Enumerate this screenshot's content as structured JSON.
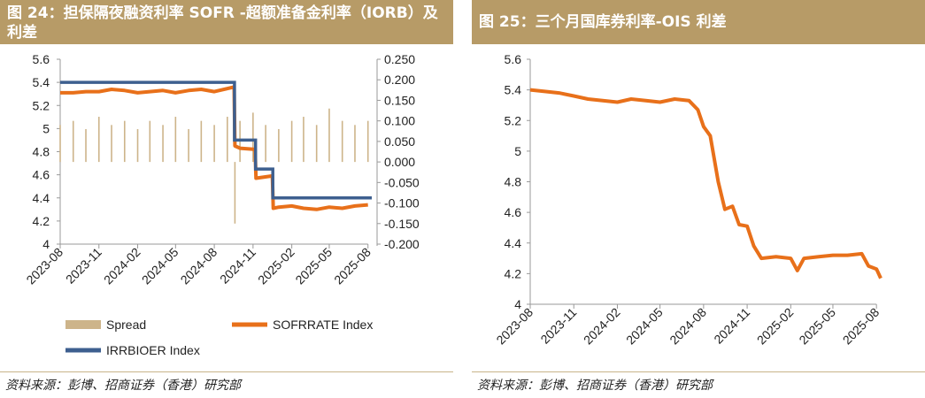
{
  "left_panel": {
    "title": "图 24：担保隔夜融资利率 SOFR -超额准备金利率（IORB）及利差",
    "source": "资料来源：彭博、招商证券（香港）研究部"
  },
  "right_panel": {
    "title": "图 25：三个月国库券利率-OIS 利差",
    "source": "资料来源：彭博、招商证券（香港）研究部"
  },
  "colors": {
    "header_bg": "#b79b67",
    "sofr": "#e8701a",
    "iorb": "#3d5f8f",
    "spread": "#cdb48a",
    "line_right": "#e8701a"
  },
  "chart_data": [
    {
      "type": "line",
      "x_ticks": [
        "2023-08",
        "2023-11",
        "2024-02",
        "2024-05",
        "2024-08",
        "2024-11",
        "2025-02",
        "2025-05",
        "2025-08"
      ],
      "y_left_ticks": [
        "5.6",
        "5.4",
        "5.2",
        "5",
        "4.8",
        "4.6",
        "4.4",
        "4.2",
        "4"
      ],
      "y_right_ticks": [
        "0.250",
        "0.200",
        "0.150",
        "0.100",
        "0.050",
        "0.000",
        "-0.050",
        "-0.100",
        "-0.150",
        "-0.200"
      ],
      "ylim_left": [
        4,
        5.6
      ],
      "ylim_right": [
        -0.2,
        0.25
      ],
      "grid": false,
      "legend_position": "bottom",
      "series": [
        {
          "name": "Spread",
          "axis": "right",
          "style": "bars",
          "x": [
            "2023-08-01",
            "2023-09-01",
            "2023-10-01",
            "2023-11-01",
            "2023-12-01",
            "2024-01-01",
            "2024-02-01",
            "2024-03-01",
            "2024-04-01",
            "2024-05-01",
            "2024-06-01",
            "2024-07-01",
            "2024-08-01",
            "2024-09-01",
            "2024-09-19",
            "2024-10-01",
            "2024-11-01",
            "2024-12-01",
            "2025-01-01",
            "2025-02-01",
            "2025-03-01",
            "2025-04-01",
            "2025-05-01",
            "2025-06-01",
            "2025-07-01",
            "2025-08-01"
          ],
          "values": [
            0.09,
            0.1,
            0.08,
            0.11,
            0.09,
            0.1,
            0.08,
            0.1,
            0.09,
            0.11,
            0.08,
            0.1,
            0.09,
            0.11,
            -0.15,
            0.1,
            0.12,
            0.09,
            0.08,
            0.1,
            0.11,
            0.09,
            0.13,
            0.1,
            0.09,
            0.1
          ]
        },
        {
          "name": "SOFRRATE Index",
          "axis": "left",
          "style": "line",
          "x": [
            "2023-08-01",
            "2023-09-01",
            "2023-10-01",
            "2023-11-01",
            "2023-12-01",
            "2024-01-01",
            "2024-02-01",
            "2024-03-01",
            "2024-04-01",
            "2024-05-01",
            "2024-06-01",
            "2024-07-01",
            "2024-08-01",
            "2024-09-17",
            "2024-09-19",
            "2024-10-01",
            "2024-11-06",
            "2024-11-08",
            "2024-12-17",
            "2024-12-19",
            "2025-01-01",
            "2025-02-01",
            "2025-03-01",
            "2025-04-01",
            "2025-05-01",
            "2025-06-01",
            "2025-07-01",
            "2025-08-01"
          ],
          "values": [
            5.31,
            5.31,
            5.32,
            5.32,
            5.34,
            5.33,
            5.31,
            5.32,
            5.33,
            5.31,
            5.33,
            5.34,
            5.32,
            5.36,
            4.85,
            4.83,
            4.82,
            4.57,
            4.59,
            4.31,
            4.32,
            4.33,
            4.31,
            4.3,
            4.32,
            4.31,
            4.33,
            4.34
          ]
        },
        {
          "name": "IRRBIOER Index",
          "axis": "left",
          "style": "step",
          "x": [
            "2023-08-01",
            "2024-09-18",
            "2024-11-07",
            "2024-12-18",
            "2025-08-10"
          ],
          "values": [
            5.4,
            4.9,
            4.65,
            4.4,
            4.4
          ]
        }
      ]
    },
    {
      "type": "line",
      "x_ticks": [
        "2023-08",
        "2023-11",
        "2024-02",
        "2024-05",
        "2024-08",
        "2024-11",
        "2025-02",
        "2025-05",
        "2025-08"
      ],
      "y_ticks": [
        "5.6",
        "5.4",
        "5.2",
        "5",
        "4.8",
        "4.6",
        "4.4",
        "4.2",
        "4"
      ],
      "ylim": [
        4,
        5.6
      ],
      "grid": false,
      "series": [
        {
          "x": [
            "2023-08-01",
            "2023-09-01",
            "2023-10-01",
            "2023-11-01",
            "2023-12-01",
            "2024-01-01",
            "2024-02-01",
            "2024-03-01",
            "2024-04-01",
            "2024-05-01",
            "2024-06-01",
            "2024-07-01",
            "2024-07-20",
            "2024-08-01",
            "2024-08-15",
            "2024-09-01",
            "2024-09-15",
            "2024-10-01",
            "2024-10-15",
            "2024-11-01",
            "2024-11-15",
            "2024-12-01",
            "2025-01-01",
            "2025-02-01",
            "2025-02-15",
            "2025-03-01",
            "2025-04-01",
            "2025-05-01",
            "2025-06-01",
            "2025-07-01",
            "2025-07-15",
            "2025-08-01",
            "2025-08-10"
          ],
          "values": [
            5.4,
            5.39,
            5.38,
            5.36,
            5.34,
            5.33,
            5.32,
            5.34,
            5.33,
            5.32,
            5.34,
            5.33,
            5.27,
            5.16,
            5.1,
            4.8,
            4.62,
            4.64,
            4.52,
            4.51,
            4.38,
            4.3,
            4.31,
            4.3,
            4.22,
            4.3,
            4.31,
            4.32,
            4.32,
            4.33,
            4.25,
            4.23,
            4.17
          ]
        }
      ]
    }
  ]
}
